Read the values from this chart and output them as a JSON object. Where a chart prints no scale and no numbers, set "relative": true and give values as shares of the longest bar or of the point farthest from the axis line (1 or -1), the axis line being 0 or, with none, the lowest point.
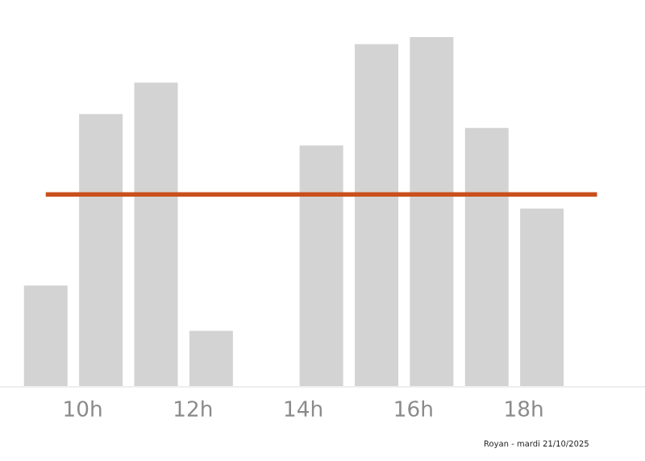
{
  "chart_data": {
    "type": "bar",
    "relative": true,
    "x": [
      9.33,
      10.33,
      11.33,
      12.33,
      13.33,
      14.33,
      15.33,
      16.33,
      17.33,
      18.33,
      19.33
    ],
    "values": [
      0.29,
      0.78,
      0.87,
      0.16,
      0,
      0.69,
      0.98,
      1,
      0.74,
      0.51,
      0
    ],
    "color": "#d3d3d3",
    "xlim": [
      8.5,
      20.2
    ],
    "xticks": [
      {
        "value": 10,
        "label": "10h"
      },
      {
        "value": 12,
        "label": "12h"
      },
      {
        "value": 14,
        "label": "14h"
      },
      {
        "value": 16,
        "label": "16h"
      },
      {
        "value": 18,
        "label": "18h"
      }
    ],
    "ref_lines": [
      {
        "axis": "y",
        "value": 0.55,
        "label": null,
        "color": "#c9501c"
      }
    ],
    "grid": false,
    "legend": false,
    "annotations": [
      "Royan - mardi 21/10/2025"
    ]
  }
}
